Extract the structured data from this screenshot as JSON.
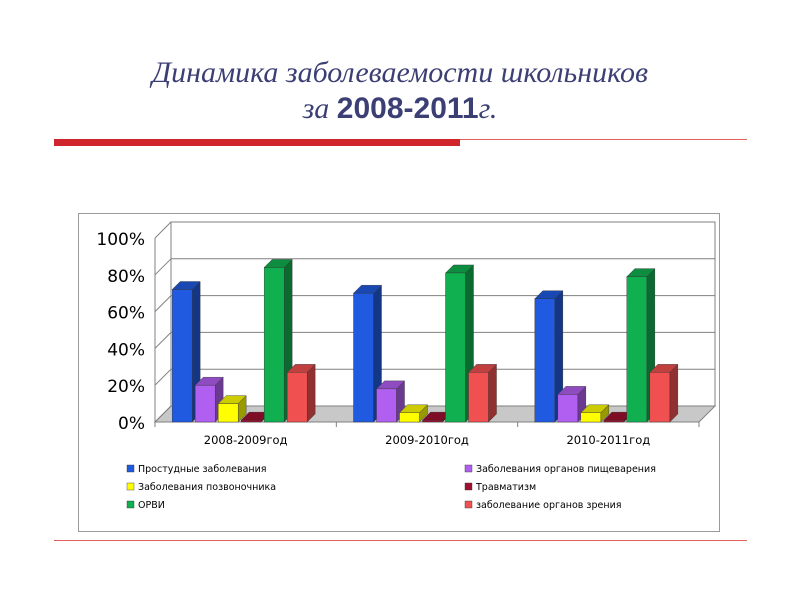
{
  "title_line1": "Динамика заболеваемости школьников",
  "title_line2_prefix": "за ",
  "title_line2_years": "2008-2011",
  "title_line2_suffix": "г.",
  "chart_data": {
    "type": "bar",
    "categories": [
      "2008-2009год",
      "2009-2010год",
      "2010-2011год"
    ],
    "yticks": [
      "0%",
      "20%",
      "40%",
      "60%",
      "80%",
      "100%"
    ],
    "ylim": [
      0,
      100
    ],
    "grid": true,
    "legend_position": "bottom",
    "series": [
      {
        "name": "Простудные заболевания",
        "color": "#1f5ae0",
        "values": [
          72,
          70,
          67
        ]
      },
      {
        "name": "Заболевания органов пищеварения",
        "color": "#b15ff0",
        "values": [
          20,
          18,
          15
        ]
      },
      {
        "name": "Заболевания позвоночника",
        "color": "#ffff00",
        "values": [
          10,
          5,
          5
        ]
      },
      {
        "name": "Травматизм",
        "color": "#a01030",
        "values": [
          1,
          1,
          1
        ]
      },
      {
        "name": "ОРВИ",
        "color": "#10b050",
        "values": [
          84,
          81,
          79
        ]
      },
      {
        "name": "заболевание органов зрения",
        "color": "#f05050",
        "values": [
          27,
          27,
          27
        ]
      }
    ]
  }
}
